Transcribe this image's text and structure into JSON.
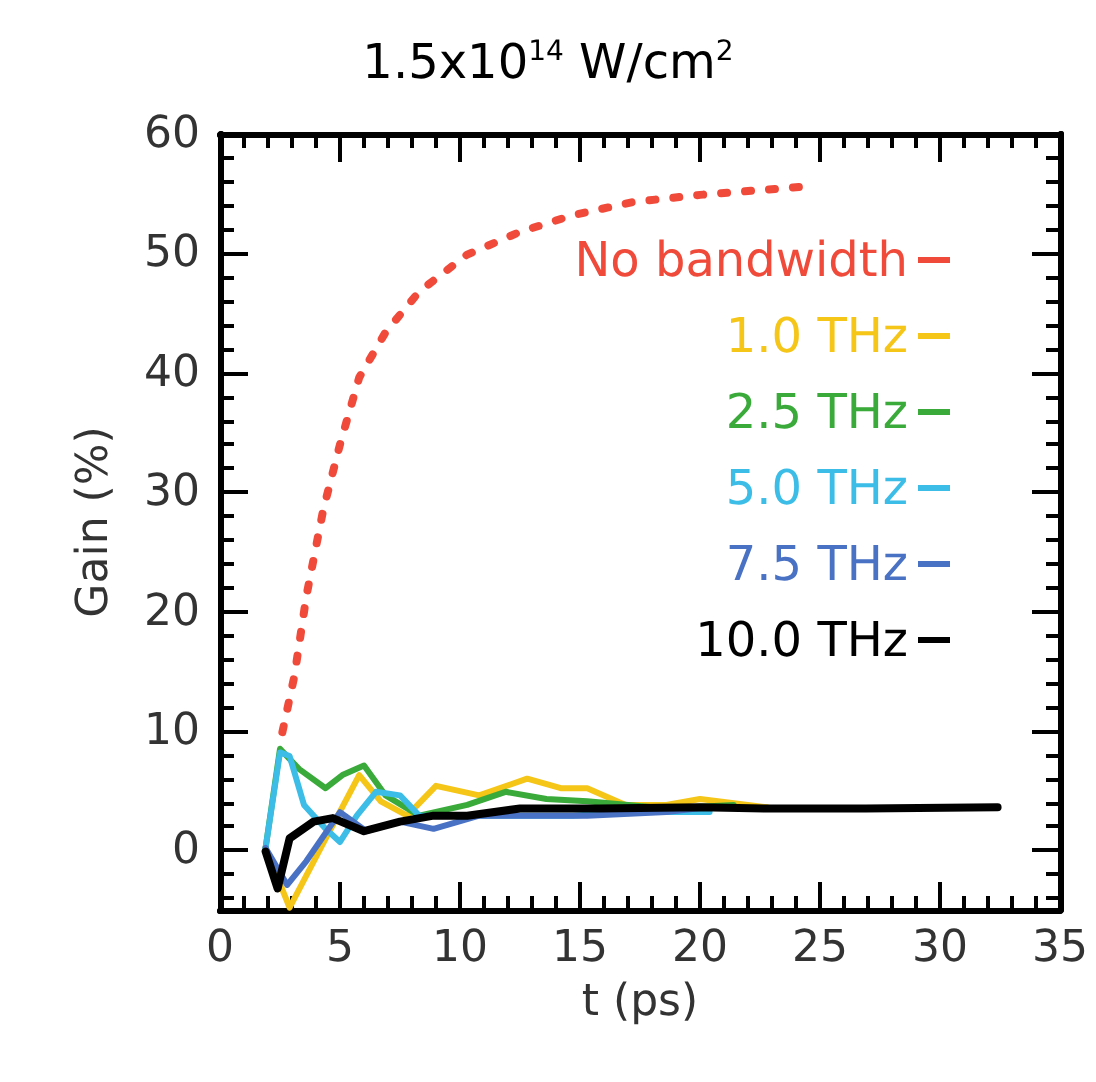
{
  "chart_data": {
    "type": "line",
    "title": "1.5x10$^{14}$ W/cm$^{2}$",
    "xlabel": "t (ps)",
    "ylabel": "Gain (%)",
    "xlim": [
      0,
      35
    ],
    "xticks": [
      0,
      5,
      10,
      15,
      20,
      25,
      30,
      35
    ],
    "ylim": [
      -5,
      60
    ],
    "yticks": [
      0,
      10,
      20,
      30,
      40,
      50,
      60
    ],
    "grid": false,
    "legend": "right",
    "series": [
      {
        "name": "No bandwidth",
        "color": "#f04a3a",
        "line_style": "dotted",
        "x": [
          2.6,
          3.1,
          3.6,
          4.3,
          5,
          5.8,
          6.9,
          8.3,
          10.3,
          12.5,
          14.7,
          17.2,
          20,
          24.4
        ],
        "values": [
          9.9,
          14.6,
          21.3,
          28.5,
          34,
          39.6,
          43.4,
          46.8,
          49.9,
          51.8,
          53.2,
          54.3,
          54.9,
          55.6
        ]
      },
      {
        "name": "1.0 THz",
        "color": "#f5c518",
        "x": [
          1.9,
          2.9,
          4.2,
          5.8,
          6.7,
          7.8,
          9,
          10.8,
          12.8,
          14.2,
          15.3,
          16.9,
          18.6,
          20,
          22.8
        ],
        "values": [
          0.2,
          -4.8,
          0.2,
          6.3,
          4.1,
          2.9,
          5.4,
          4.6,
          6,
          5.2,
          5.2,
          3.8,
          3.8,
          4.3,
          3.6
        ]
      },
      {
        "name": "2.5 THz",
        "color": "#3aaa3a",
        "x": [
          1.9,
          2.5,
          3.3,
          4.4,
          5.1,
          6,
          6.9,
          8.3,
          10.3,
          11.9,
          13.6,
          15.3,
          18.6,
          21.4
        ],
        "values": [
          0.2,
          8.5,
          6.8,
          5.2,
          6.3,
          7.1,
          4.6,
          2.9,
          3.8,
          4.9,
          4.3,
          4.1,
          3.5,
          3.8
        ]
      },
      {
        "name": "5.0 THz",
        "color": "#3bbde8",
        "x": [
          1.9,
          2.5,
          2.9,
          3.5,
          4.4,
          5,
          5.7,
          6.5,
          7.5,
          8.3,
          10.3,
          12.5,
          14.7,
          16.9,
          20.4
        ],
        "values": [
          0.2,
          8.2,
          7.9,
          3.8,
          1.8,
          0.7,
          2.9,
          4.9,
          4.6,
          2.9,
          2.9,
          2.9,
          2.9,
          3.2,
          3.2
        ]
      },
      {
        "name": "7.5 THz",
        "color": "#4a72c4",
        "x": [
          1.9,
          2.8,
          3.6,
          5,
          6.1,
          7.5,
          8.9,
          10.8,
          13,
          15.3,
          18.6,
          20.3
        ],
        "values": [
          0.2,
          -2.9,
          -0.9,
          3.2,
          1.6,
          2.4,
          1.8,
          2.9,
          2.9,
          2.9,
          3.2,
          3.6
        ]
      },
      {
        "name": "10.0 THz",
        "color": "#000000",
        "x": [
          1.9,
          2.4,
          2.9,
          3.9,
          4.7,
          6,
          7.5,
          8.9,
          10.3,
          12.5,
          15.8,
          20,
          22.8,
          26.9,
          32.4
        ],
        "values": [
          -0.1,
          -3.2,
          1,
          2.4,
          2.7,
          1.6,
          2.4,
          2.9,
          2.9,
          3.5,
          3.5,
          3.6,
          3.5,
          3.5,
          3.6
        ]
      }
    ]
  }
}
